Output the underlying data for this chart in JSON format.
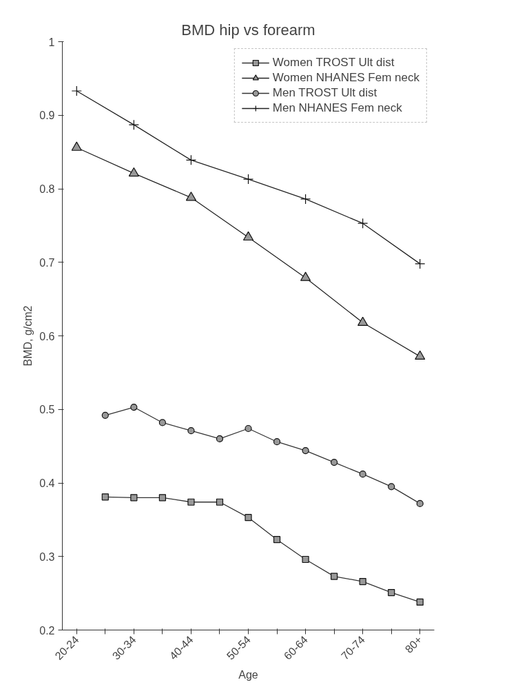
{
  "chart_data": {
    "type": "line",
    "title": "BMD hip vs forearm",
    "xlabel": "Age",
    "ylabel": "BMD, g/cm2",
    "categories": [
      "20-24",
      null,
      "30-34",
      null,
      "40-44",
      null,
      "50-54",
      null,
      "60-64",
      null,
      "70-74",
      null,
      "80+"
    ],
    "series": [
      {
        "name": "Women TROST Ult dist",
        "color": "#333333",
        "marker": "square",
        "values": [
          null,
          0.381,
          0.38,
          0.38,
          0.374,
          0.374,
          0.353,
          0.323,
          0.296,
          0.273,
          0.266,
          0.251,
          0.238
        ]
      },
      {
        "name": "Women NHANES Fem neck",
        "color": "#222222",
        "marker": "triangle",
        "values": [
          0.856,
          null,
          0.821,
          null,
          0.788,
          null,
          0.734,
          null,
          0.679,
          null,
          0.618,
          null,
          0.572
        ]
      },
      {
        "name": "Men TROST Ult dist",
        "color": "#333333",
        "marker": "circle",
        "values": [
          null,
          0.492,
          0.503,
          0.482,
          0.471,
          0.46,
          0.474,
          0.456,
          0.444,
          0.428,
          0.412,
          0.395,
          0.372
        ]
      },
      {
        "name": "Men NHANES Fem neck",
        "color": "#222222",
        "marker": "cross",
        "values": [
          0.933,
          null,
          0.887,
          null,
          0.839,
          null,
          0.813,
          null,
          0.786,
          null,
          0.753,
          null,
          0.698
        ]
      }
    ],
    "ylim": [
      0.2,
      1
    ],
    "yticks": [
      0.2,
      0.3,
      0.4,
      0.5,
      0.6,
      0.7,
      0.8,
      0.9,
      1
    ],
    "grid": false,
    "legend": "top right",
    "line_style": "solid"
  }
}
